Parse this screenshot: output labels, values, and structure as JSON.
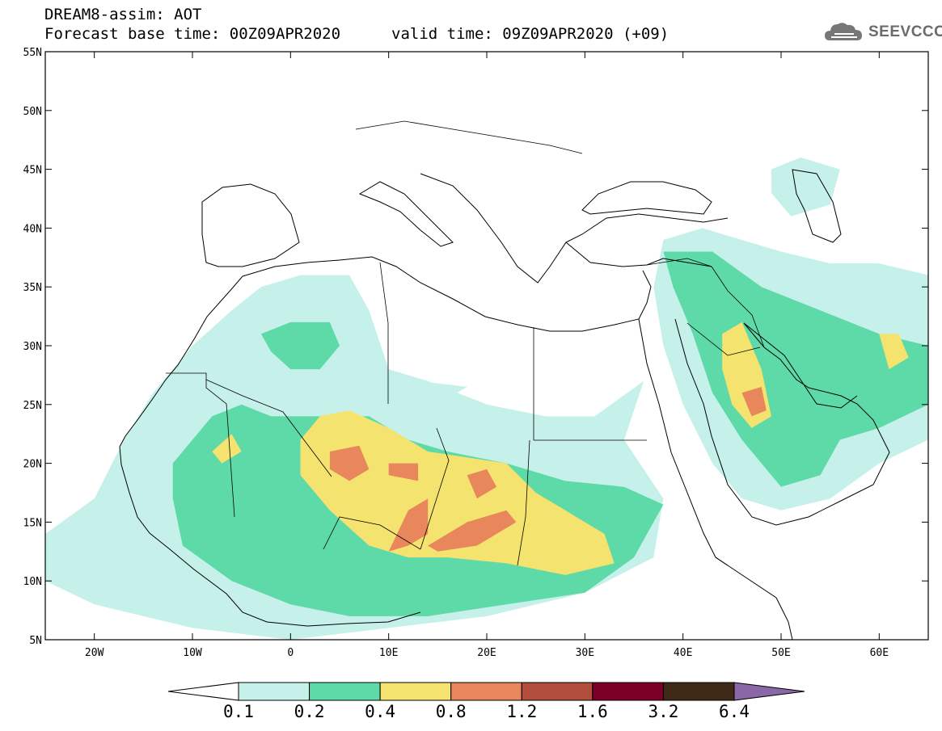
{
  "header": {
    "title_line1": "DREAM8-assim: AOT",
    "title_line2": "Forecast base time: 00Z09APR2020",
    "valid_time": "valid time: 09Z09APR2020 (+09)"
  },
  "logo": {
    "text": "SEEVCCC",
    "icon": "cloud-icon"
  },
  "map": {
    "lon_range": [
      -25,
      65
    ],
    "lat_range": [
      5,
      55
    ],
    "lat_ticks": [
      {
        "value": 55,
        "label": "55N"
      },
      {
        "value": 50,
        "label": "50N"
      },
      {
        "value": 45,
        "label": "45N"
      },
      {
        "value": 40,
        "label": "40N"
      },
      {
        "value": 35,
        "label": "35N"
      },
      {
        "value": 30,
        "label": "30N"
      },
      {
        "value": 25,
        "label": "25N"
      },
      {
        "value": 20,
        "label": "20N"
      },
      {
        "value": 15,
        "label": "15N"
      },
      {
        "value": 10,
        "label": "10N"
      },
      {
        "value": 5,
        "label": "5N"
      }
    ],
    "lon_ticks": [
      {
        "value": -20,
        "label": "20W"
      },
      {
        "value": -10,
        "label": "10W"
      },
      {
        "value": 0,
        "label": "0"
      },
      {
        "value": 10,
        "label": "10E"
      },
      {
        "value": 20,
        "label": "20E"
      },
      {
        "value": 30,
        "label": "30E"
      },
      {
        "value": 40,
        "label": "40E"
      },
      {
        "value": 50,
        "label": "50E"
      },
      {
        "value": 60,
        "label": "60E"
      }
    ],
    "aot_fields": [
      {
        "level": 0.1,
        "color": "#c6f0ea",
        "polygons": [
          [
            [
              -25,
              14
            ],
            [
              -20,
              17
            ],
            [
              -17,
              22
            ],
            [
              -14,
              26
            ],
            [
              -10,
              30
            ],
            [
              -6,
              33
            ],
            [
              -3,
              35
            ],
            [
              1,
              36
            ],
            [
              6,
              36
            ],
            [
              8,
              33
            ],
            [
              10,
              28
            ],
            [
              14,
              27
            ],
            [
              20,
              25
            ],
            [
              26,
              24
            ],
            [
              31,
              24
            ],
            [
              36,
              27
            ],
            [
              34,
              22
            ],
            [
              38,
              17
            ],
            [
              37,
              12
            ],
            [
              30,
              9
            ],
            [
              20,
              7
            ],
            [
              10,
              6
            ],
            [
              0,
              5
            ],
            [
              -10,
              6
            ],
            [
              -20,
              8
            ],
            [
              -25,
              10
            ]
          ],
          [
            [
              38,
              39
            ],
            [
              42,
              40
            ],
            [
              46,
              39
            ],
            [
              50,
              38
            ],
            [
              55,
              37
            ],
            [
              60,
              37
            ],
            [
              65,
              36
            ],
            [
              65,
              22
            ],
            [
              60,
              20
            ],
            [
              55,
              17
            ],
            [
              50,
              16
            ],
            [
              46,
              17
            ],
            [
              43,
              20
            ],
            [
              40,
              25
            ],
            [
              38,
              30
            ],
            [
              37,
              35
            ]
          ],
          [
            [
              49,
              45
            ],
            [
              52,
              46
            ],
            [
              56,
              45
            ],
            [
              55,
              42
            ],
            [
              51,
              41
            ],
            [
              49,
              43
            ]
          ],
          [
            [
              13,
              27
            ],
            [
              18,
              26.5
            ],
            [
              16,
              25.5
            ],
            [
              12,
              26
            ]
          ]
        ]
      },
      {
        "level": 0.2,
        "color": "#5edaa8",
        "polygons": [
          [
            [
              -12,
              20
            ],
            [
              -8,
              24
            ],
            [
              -5,
              25
            ],
            [
              -2,
              24
            ],
            [
              2,
              24
            ],
            [
              8,
              24
            ],
            [
              12,
              22
            ],
            [
              16,
              21
            ],
            [
              22,
              20
            ],
            [
              28,
              18.5
            ],
            [
              34,
              18
            ],
            [
              38,
              16.5
            ],
            [
              35,
              12
            ],
            [
              30,
              9
            ],
            [
              22,
              8
            ],
            [
              14,
              7
            ],
            [
              6,
              7
            ],
            [
              0,
              8
            ],
            [
              -6,
              10
            ],
            [
              -11,
              13
            ],
            [
              -12,
              17
            ]
          ],
          [
            [
              -3,
              31
            ],
            [
              0,
              32
            ],
            [
              4,
              32
            ],
            [
              5,
              30
            ],
            [
              3,
              28
            ],
            [
              0,
              28
            ],
            [
              -2,
              29.5
            ]
          ],
          [
            [
              38,
              38
            ],
            [
              43,
              38
            ],
            [
              48,
              35
            ],
            [
              54,
              33
            ],
            [
              60,
              31
            ],
            [
              65,
              30
            ],
            [
              65,
              25
            ],
            [
              60,
              23
            ],
            [
              56,
              22
            ],
            [
              54,
              19
            ],
            [
              50,
              18
            ],
            [
              48,
              20
            ],
            [
              46,
              22
            ],
            [
              43,
              26
            ],
            [
              41,
              31
            ],
            [
              39,
              35
            ]
          ]
        ]
      },
      {
        "level": 0.4,
        "color": "#f5e36f",
        "polygons": [
          [
            [
              1,
              22
            ],
            [
              3,
              24
            ],
            [
              6,
              24.5
            ],
            [
              10,
              23
            ],
            [
              14,
              21
            ],
            [
              18,
              20.5
            ],
            [
              22,
              20
            ],
            [
              25,
              17.5
            ],
            [
              28,
              16
            ],
            [
              32,
              14
            ],
            [
              33,
              11.5
            ],
            [
              28,
              10.5
            ],
            [
              22,
              11.5
            ],
            [
              16,
              12
            ],
            [
              12,
              12
            ],
            [
              8,
              13
            ],
            [
              4,
              16
            ],
            [
              1,
              19
            ]
          ],
          [
            [
              -8,
              21
            ],
            [
              -6,
              22.5
            ],
            [
              -5,
              21
            ],
            [
              -7,
              20
            ]
          ],
          [
            [
              44,
              31
            ],
            [
              46,
              32
            ],
            [
              48,
              28
            ],
            [
              49,
              24
            ],
            [
              47,
              23
            ],
            [
              45,
              25
            ],
            [
              44,
              28
            ]
          ],
          [
            [
              60,
              31
            ],
            [
              62,
              31
            ],
            [
              63,
              29
            ],
            [
              61,
              28
            ]
          ]
        ]
      },
      {
        "level": 0.8,
        "color": "#e8875c",
        "polygons": [
          [
            [
              4,
              21
            ],
            [
              7,
              21.5
            ],
            [
              8,
              19.5
            ],
            [
              6,
              18.5
            ],
            [
              4,
              19.5
            ]
          ],
          [
            [
              10,
              20
            ],
            [
              13,
              20
            ],
            [
              13,
              18.5
            ],
            [
              10,
              19
            ]
          ],
          [
            [
              10,
              12.5
            ],
            [
              12,
              16
            ],
            [
              14,
              17
            ],
            [
              14,
              14
            ],
            [
              12,
              13
            ]
          ],
          [
            [
              14,
              13
            ],
            [
              18,
              15
            ],
            [
              22,
              16
            ],
            [
              23,
              15
            ],
            [
              19,
              13
            ],
            [
              15,
              12.5
            ]
          ],
          [
            [
              18,
              19
            ],
            [
              20,
              19.5
            ],
            [
              21,
              18
            ],
            [
              19,
              17
            ]
          ],
          [
            [
              46,
              26
            ],
            [
              48,
              26.5
            ],
            [
              48.5,
              24.5
            ],
            [
              47,
              24
            ]
          ]
        ]
      }
    ]
  },
  "colorbar": {
    "labels": [
      "0.1",
      "0.2",
      "0.4",
      "0.8",
      "1.2",
      "1.6",
      "3.2",
      "6.4"
    ],
    "colors": [
      "#ffffff",
      "#c6f0ea",
      "#5edaa8",
      "#f5e36f",
      "#e8875c",
      "#b14e3c",
      "#7a0027",
      "#3f2a18",
      "#8a68a8"
    ]
  }
}
